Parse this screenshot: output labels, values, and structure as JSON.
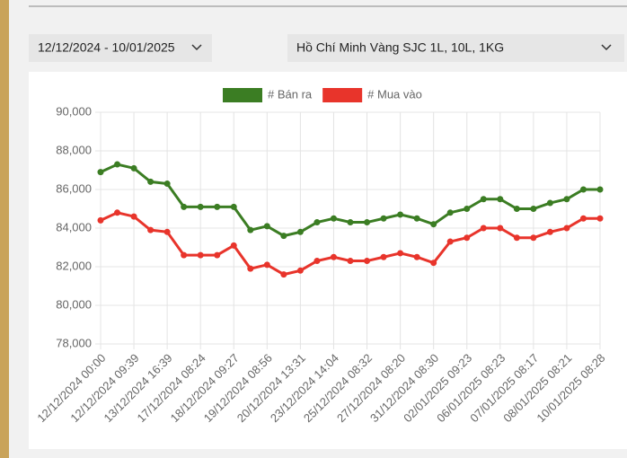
{
  "filters": {
    "date_range": "12/12/2024 - 10/01/2025",
    "product": "Hồ Chí Minh Vàng SJC 1L, 10L, 1KG"
  },
  "chart_data": {
    "type": "line",
    "categories": [
      "12/12/2024 00:00",
      null,
      "12/12/2024 09:39",
      null,
      "13/12/2024 16:39",
      null,
      "17/12/2024 08:24",
      null,
      "18/12/2024 09:27",
      null,
      "19/12/2024 08:56",
      null,
      "20/12/2024 13:31",
      null,
      "23/12/2024 14:04",
      null,
      "25/12/2024 08:32",
      null,
      "27/12/2024 08:20",
      null,
      "31/12/2024 08:30",
      null,
      "02/01/2025 09:23",
      null,
      "06/01/2025 08:23",
      null,
      "07/01/2025 08:17",
      null,
      "08/01/2025 08:21",
      null,
      "10/01/2025 08:28"
    ],
    "series": [
      {
        "name": "# Bán ra",
        "color": "#3b7d23",
        "values": [
          86900,
          87300,
          87100,
          86400,
          86300,
          85100,
          85100,
          85100,
          85100,
          83900,
          84100,
          83600,
          83800,
          84300,
          84500,
          84300,
          84300,
          84500,
          84700,
          84500,
          84200,
          84800,
          85000,
          85500,
          85500,
          85000,
          85000,
          85300,
          85500,
          86000,
          86000
        ]
      },
      {
        "name": "# Mua vào",
        "color": "#e8342b",
        "values": [
          84400,
          84800,
          84600,
          83900,
          83800,
          82600,
          82600,
          82600,
          83100,
          81900,
          82100,
          81600,
          81800,
          82300,
          82500,
          82300,
          82300,
          82500,
          82700,
          82500,
          82200,
          83300,
          83500,
          84000,
          84000,
          83500,
          83500,
          83800,
          84000,
          84500,
          84500
        ]
      }
    ],
    "ylim": [
      78000,
      90000
    ],
    "yticks": [
      {
        "value": 78000,
        "label": "78,000"
      },
      {
        "value": 80000,
        "label": "80,000"
      },
      {
        "value": 82000,
        "label": "82,000"
      },
      {
        "value": 84000,
        "label": "84,000"
      },
      {
        "value": 86000,
        "label": "86,000"
      },
      {
        "value": 88000,
        "label": "88,000"
      },
      {
        "value": 90000,
        "label": "90,000"
      }
    ],
    "grid": true,
    "legend": "top"
  }
}
